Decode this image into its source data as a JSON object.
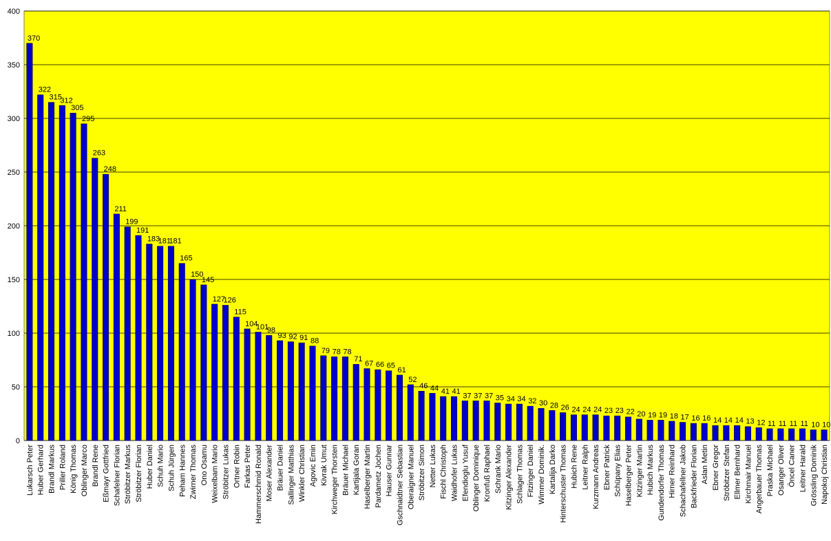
{
  "chart_data": {
    "type": "bar",
    "categories": [
      "Lukarsch Peter",
      "Huber Gerhard",
      "Brandl Markus",
      "Priller Roland",
      "König Thomas",
      "Oblinger Marco",
      "Brandl Rene",
      "Eßmayr Gottfried",
      "Schafelner Florian",
      "Ströbitzer Markus",
      "Ströbitzer Florian",
      "Huber Daniel",
      "Schuh Mario",
      "Schuh Jürgen",
      "Peham Hannes",
      "Zwirner Thomas",
      "Ono Osamu",
      "Weixelbam Mario",
      "Ströbitzer Lukas",
      "Ortner Robin",
      "Farkas Peter",
      "Hammerschmid Ronald",
      "Moser Alexander",
      "Bräuer Daniel",
      "Sallinger Matthias",
      "Winkler Christian",
      "Agovic Emin",
      "Kivrak Umut",
      "Kirchweger Thorsten",
      "Bräuer Michael",
      "Kartijala Goran",
      "Haselberger Martin",
      "Pardametz Jochen",
      "Hauser Gunnar",
      "Gschnaidtner Sebastian",
      "Oberaigner Manuel",
      "Ströbitzer Simon",
      "Netter Lukas",
      "Fischl Christoph",
      "Waidhofer Lukas",
      "Efendioglu Yusuf",
      "Oblinger Dominique",
      "Kronfuß Raphael",
      "Schrank Mario",
      "Kitzinger Alexander",
      "Schlager Thomas",
      "Fitzinger Daniel",
      "Wimmer Dominik.",
      "Kartalija Darko",
      "Hinterschuster Thomas",
      "Hubich Rene",
      "Leitner Ralph",
      "Kurzmann Andreas",
      "Ebner Patrick",
      "Schüpany Elias",
      "Haselberger Peter",
      "Kitzinger Martin",
      "Hubich Markus",
      "Gundendorfer Thomas",
      "Hirner Reinhard",
      "Schachafellner Jakob",
      "Backfrieder Florian",
      "Aslan Metin",
      "Ebner Gregor",
      "Ströbitzer Stefan",
      "Ellmer Bernhard",
      "Kirchmair Manuel",
      "Angerbauer Thomas",
      "Praska Michael",
      "Osanger Oliver",
      "Öncel Caner",
      "Leitner Harald",
      "Grössling Dominik",
      "Napokoj Christian"
    ],
    "values": [
      370,
      322,
      315,
      312,
      305,
      295,
      263,
      248,
      211,
      199,
      191,
      183,
      181,
      181,
      165,
      150,
      145,
      127,
      126,
      115,
      104,
      101,
      98,
      93,
      92,
      91,
      88,
      79,
      78,
      78,
      71,
      67,
      66,
      65,
      61,
      52,
      46,
      44,
      41,
      41,
      37,
      37,
      37,
      35,
      34,
      34,
      32,
      30,
      28,
      26,
      24,
      24,
      24,
      23,
      23,
      22,
      20,
      19,
      19,
      18,
      17,
      16,
      16,
      14,
      14,
      14,
      13,
      12,
      11,
      11,
      11,
      11,
      10,
      10
    ],
    "color": "#0000cc",
    "plot_background": "#ffff00",
    "ylim": [
      0,
      400
    ],
    "yticks": [
      0,
      50,
      100,
      150,
      200,
      250,
      300,
      350,
      400
    ],
    "grid": true
  }
}
